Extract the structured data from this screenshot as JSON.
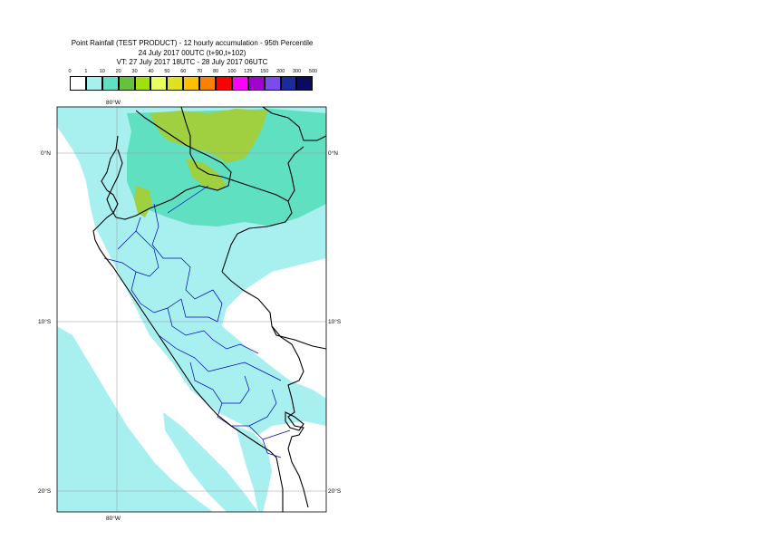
{
  "title": {
    "line1": "Point Rainfall (TEST PRODUCT) - 12 hourly accumulation - 95th Percentile",
    "line2": "24 July 2017 00UTC (t+90,t+102)",
    "line3": "VT: 27 July 2017 18UTC - 28 July 2017 06UTC"
  },
  "legend": {
    "thresholds": [
      "0",
      "1",
      "10",
      "20",
      "30",
      "40",
      "50",
      "60",
      "70",
      "80",
      "100",
      "125",
      "150",
      "200",
      "300",
      "500"
    ],
    "colors": [
      "#ffffff",
      "#a8f0f0",
      "#5fe0c0",
      "#66c23c",
      "#a0e010",
      "#e8ff60",
      "#e0e020",
      "#ffc000",
      "#ff8000",
      "#ff0000",
      "#ff00ff",
      "#a000d0",
      "#7a4cf0",
      "#1c2aa0",
      "#0a0a60"
    ]
  },
  "map": {
    "lon_labels": [
      "80°W",
      "80°W"
    ],
    "lat_labels": [
      "0°N",
      "10°S",
      "20°S"
    ],
    "lat_labels_right": [
      "0°N",
      "10°S",
      "20°S"
    ],
    "colors": {
      "sea_background": "#ffffff",
      "light_rain": "#a8f0f0",
      "moderate_rain": "#5fe0c0",
      "heavy_rain": "#a0d040",
      "country_border": "#000000",
      "region_border": "#0000c0",
      "grid": "#999999"
    }
  }
}
